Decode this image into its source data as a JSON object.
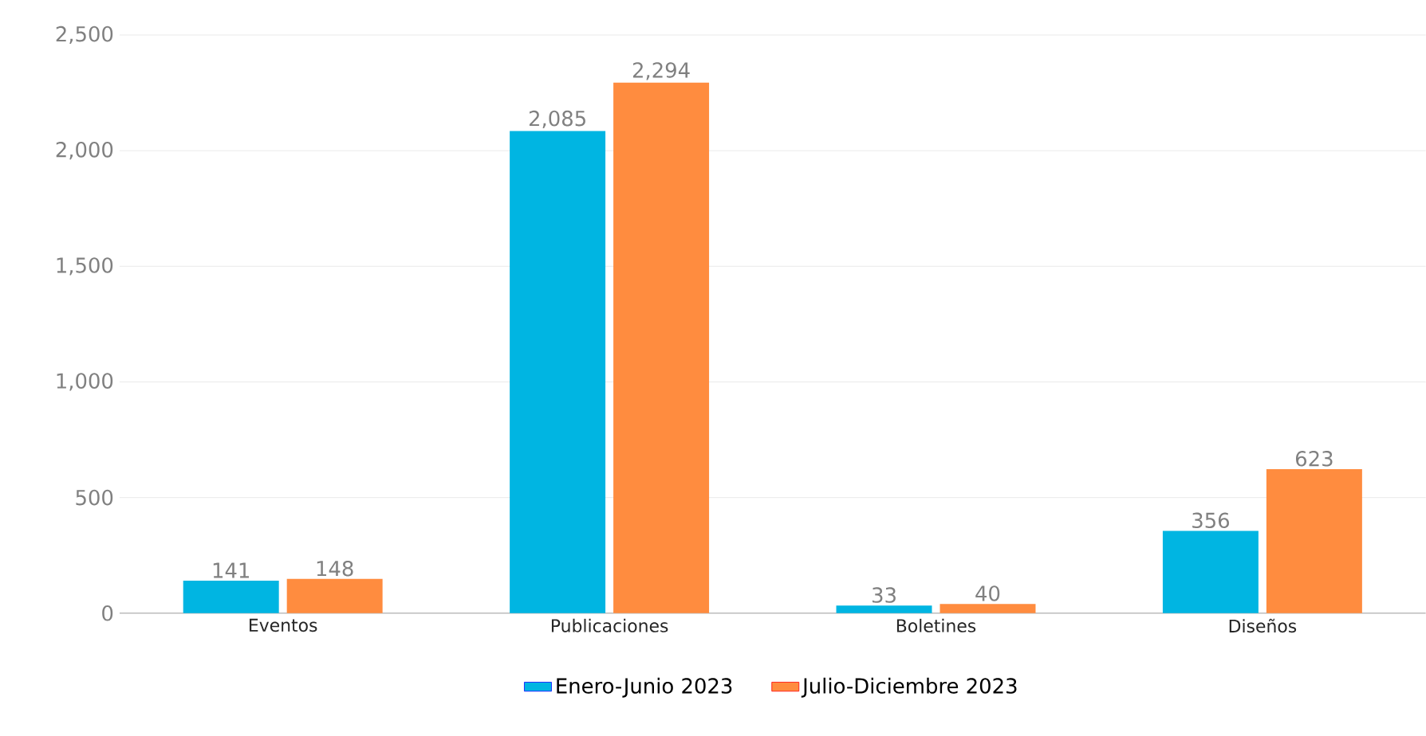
{
  "chart_data": {
    "type": "bar",
    "categories": [
      "Eventos",
      "Publicaciones",
      "Boletines",
      "Diseños"
    ],
    "series": [
      {
        "name": "Enero-Junio 2023",
        "color": "#00b5e2",
        "values": [
          141,
          2085,
          33,
          356
        ],
        "value_labels": [
          "141",
          "2,085",
          "33",
          "356"
        ]
      },
      {
        "name": "Julio-Diciembre 2023",
        "color": "#ff8c3f",
        "values": [
          148,
          2294,
          40,
          623
        ],
        "value_labels": [
          "148",
          "2,294",
          "40",
          "623"
        ]
      }
    ],
    "ylim": [
      0,
      2500
    ],
    "yticks": [
      {
        "value": 0,
        "label": "0"
      },
      {
        "value": 500,
        "label": "500"
      },
      {
        "value": 1000,
        "label": "1,000"
      },
      {
        "value": 1500,
        "label": "1,500"
      },
      {
        "value": 2000,
        "label": "2,000"
      },
      {
        "value": 2500,
        "label": "2,500"
      }
    ],
    "grid": "y",
    "legend": "bottom"
  }
}
